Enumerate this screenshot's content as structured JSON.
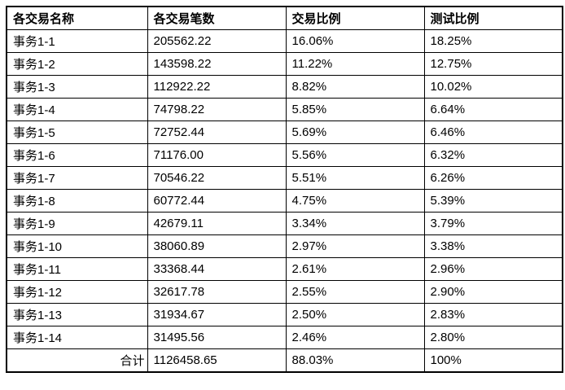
{
  "table": {
    "columns": [
      "各交易名称",
      "各交易笔数",
      "交易比例",
      "测试比例"
    ],
    "rows": [
      [
        "事务1-1",
        "205562.22",
        "16.06%",
        "18.25%"
      ],
      [
        "事务1-2",
        "143598.22",
        "11.22%",
        "12.75%"
      ],
      [
        "事务1-3",
        "112922.22",
        "8.82%",
        "10.02%"
      ],
      [
        "事务1-4",
        "74798.22",
        "5.85%",
        "6.64%"
      ],
      [
        "事务1-5",
        "72752.44",
        "5.69%",
        "6.46%"
      ],
      [
        "事务1-6",
        "71176.00",
        "5.56%",
        "6.32%"
      ],
      [
        "事务1-7",
        "70546.22",
        "5.51%",
        "6.26%"
      ],
      [
        "事务1-8",
        "60772.44",
        "4.75%",
        "5.39%"
      ],
      [
        "事务1-9",
        "42679.11",
        "3.34%",
        "3.79%"
      ],
      [
        "事务1-10",
        "38060.89",
        "2.97%",
        "3.38%"
      ],
      [
        "事务1-11",
        "33368.44",
        "2.61%",
        "2.96%"
      ],
      [
        "事务1-12",
        "32617.78",
        "2.55%",
        "2.90%"
      ],
      [
        "事务1-13",
        "31934.67",
        "2.50%",
        "2.83%"
      ],
      [
        "事务1-14",
        "31495.56",
        "2.46%",
        "2.80%"
      ]
    ],
    "total": [
      "合计",
      "1126458.65",
      "88.03%",
      "100%"
    ]
  },
  "colors": {
    "border": "#000000",
    "text": "#000000",
    "background": "#ffffff"
  }
}
